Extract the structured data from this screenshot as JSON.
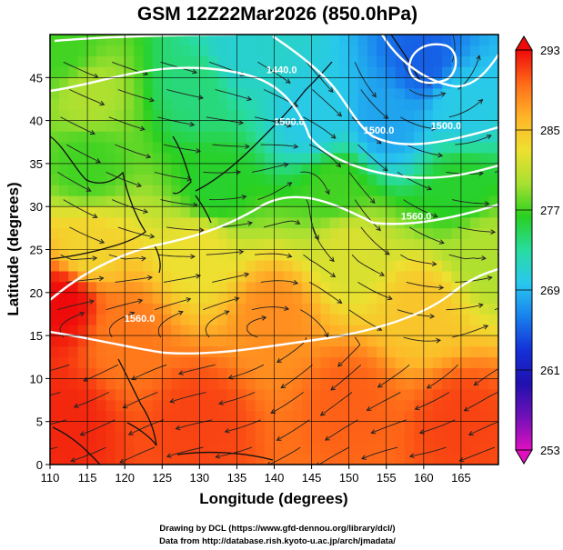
{
  "title": "GSM 12Z22Mar2026 (850.0hPa)",
  "x_axis": {
    "label": "Longitude (degrees)",
    "range": [
      110,
      170
    ],
    "ticks": [
      110,
      115,
      120,
      125,
      130,
      135,
      140,
      145,
      150,
      155,
      160,
      165
    ]
  },
  "y_axis": {
    "label": "Latitude  (degrees)",
    "range": [
      0,
      50
    ],
    "ticks": [
      0,
      5,
      10,
      15,
      20,
      25,
      30,
      35,
      40,
      45
    ]
  },
  "colorbar": {
    "min": 253,
    "max": 293,
    "labels": [
      293,
      285,
      277,
      269,
      261,
      253
    ],
    "colors": [
      "#ee0a0a",
      "#ff6a18",
      "#ffb428",
      "#eee030",
      "#a8e030",
      "#28d020",
      "#28dca0",
      "#28c8ee",
      "#1880ee",
      "#1430d8",
      "#2010b0",
      "#7010b8",
      "#e010c0"
    ]
  },
  "contour_labels": [
    "1440.0",
    "1500.0",
    "1500.0",
    "1560.0",
    "1560.0",
    "1500.0"
  ],
  "credits": [
    "Drawing by DCL (https://www.gfd-dennou.org/library/dcl/)",
    "Data from http://database.rish.kyoto-u.ac.jp/arch/jmadata/"
  ],
  "map_data": {
    "type": "temperature_streamline_map",
    "field": "temperature (K), 850.0hPa",
    "temperature_samples": [
      {
        "lon": 112,
        "lat": 5,
        "t": 292
      },
      {
        "lon": 130,
        "lat": 5,
        "t": 291
      },
      {
        "lon": 150,
        "lat": 7,
        "t": 290
      },
      {
        "lon": 165,
        "lat": 5,
        "t": 291
      },
      {
        "lon": 112,
        "lat": 19,
        "t": 293
      },
      {
        "lon": 120,
        "lat": 15,
        "t": 289
      },
      {
        "lon": 140,
        "lat": 17,
        "t": 288
      },
      {
        "lon": 160,
        "lat": 18,
        "t": 285
      },
      {
        "lon": 115,
        "lat": 25,
        "t": 284
      },
      {
        "lon": 130,
        "lat": 25,
        "t": 283
      },
      {
        "lon": 150,
        "lat": 25,
        "t": 282
      },
      {
        "lon": 168,
        "lat": 25,
        "t": 280
      },
      {
        "lon": 115,
        "lat": 35,
        "t": 277
      },
      {
        "lon": 132,
        "lat": 32,
        "t": 276
      },
      {
        "lon": 148,
        "lat": 32,
        "t": 277
      },
      {
        "lon": 165,
        "lat": 32,
        "t": 276
      },
      {
        "lon": 115,
        "lat": 43,
        "t": 280
      },
      {
        "lon": 130,
        "lat": 44,
        "t": 274
      },
      {
        "lon": 145,
        "lat": 40,
        "t": 270
      },
      {
        "lon": 155,
        "lat": 40,
        "t": 268
      },
      {
        "lon": 165,
        "lat": 42,
        "t": 270
      },
      {
        "lon": 135,
        "lat": 48,
        "t": 271
      },
      {
        "lon": 160,
        "lat": 47,
        "t": 265
      },
      {
        "lon": 112,
        "lat": 48,
        "t": 277
      }
    ]
  }
}
